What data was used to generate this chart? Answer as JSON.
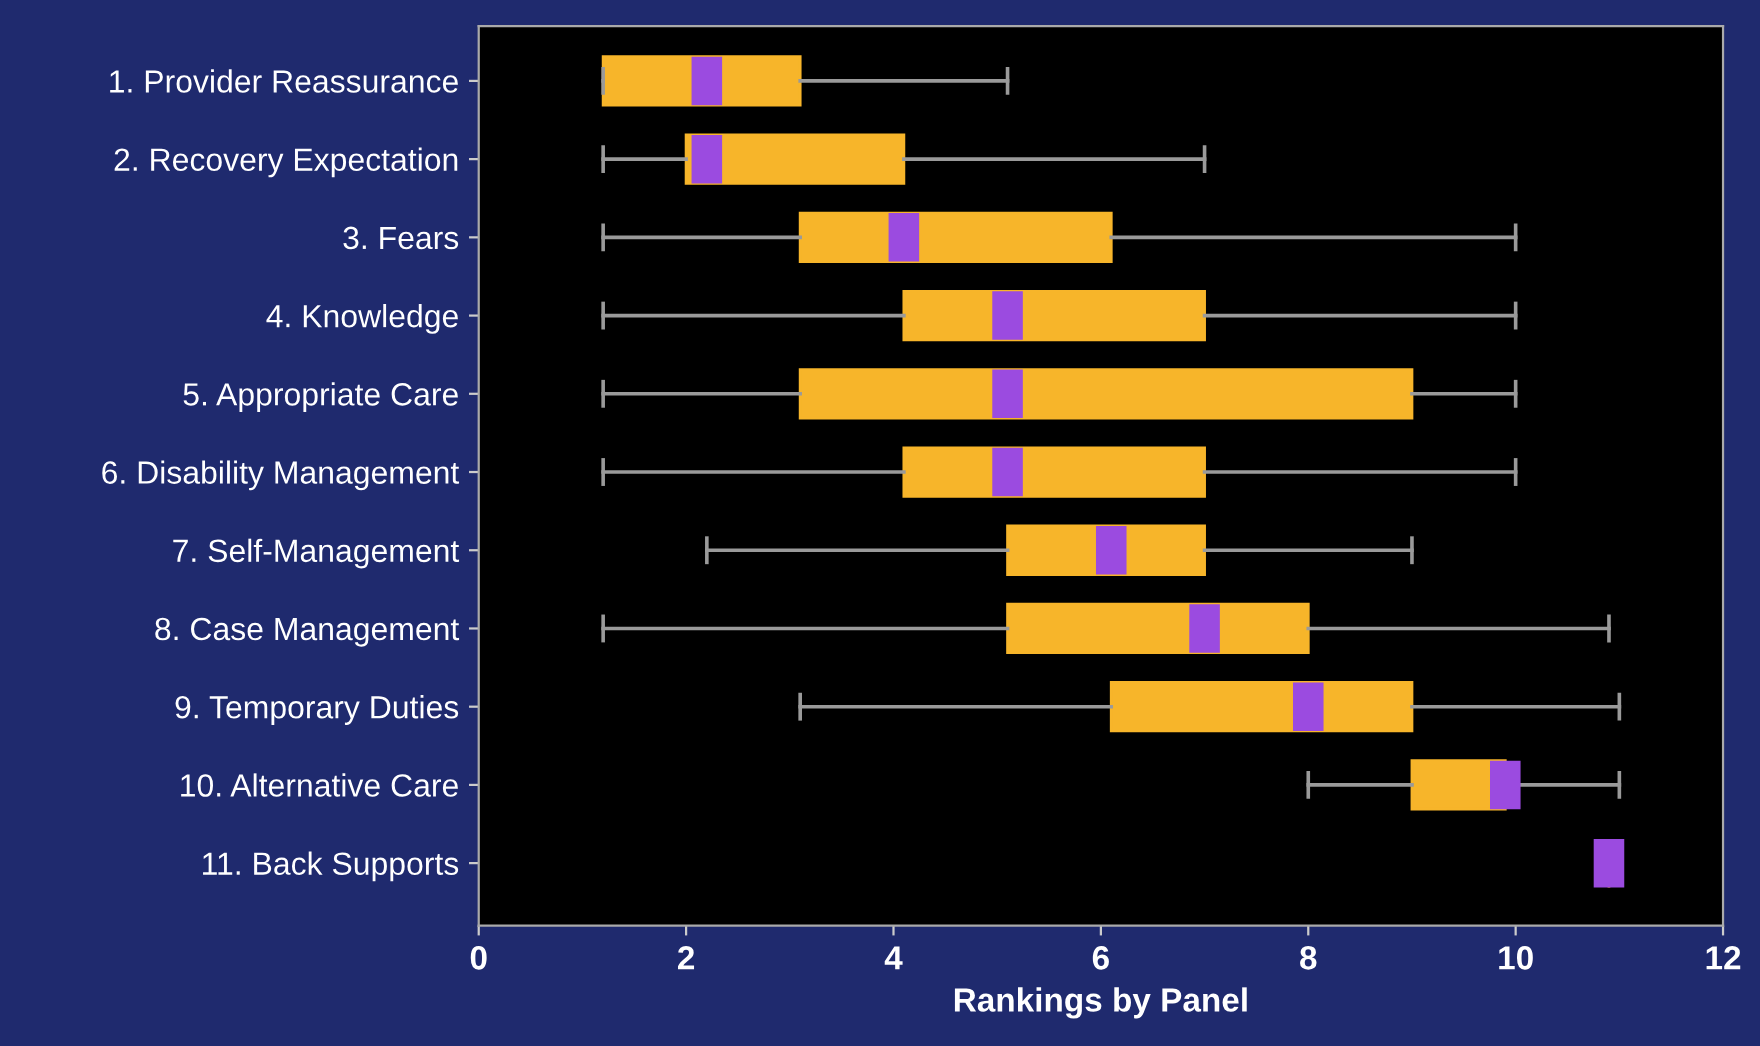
{
  "chart_data": {
    "type": "box",
    "orientation": "horizontal",
    "xlabel": "Rankings by Panel",
    "categories": [
      "1. Provider Reassurance",
      "2. Recovery Expectation",
      "3. Fears",
      "4. Knowledge",
      "5. Appropriate Care",
      "6. Disability Management",
      "7. Self-Management",
      "8. Case Management",
      "9. Temporary Duties",
      "10. Alternative Care",
      "11. Back Supports"
    ],
    "series": [
      {
        "color": "#f7b52a",
        "boxes": [
          {
            "low": 1.2,
            "q1": 1.2,
            "median": 2.2,
            "q3": 3.1,
            "high": 5.1
          },
          {
            "low": 1.2,
            "q1": 2.0,
            "median": 2.2,
            "q3": 4.1,
            "high": 7.0
          },
          {
            "low": 1.2,
            "q1": 3.1,
            "median": 4.1,
            "q3": 6.1,
            "high": 10.0
          },
          {
            "low": 1.2,
            "q1": 4.1,
            "median": 5.1,
            "q3": 7.0,
            "high": 10.0
          },
          {
            "low": 1.2,
            "q1": 3.1,
            "median": 5.1,
            "q3": 9.0,
            "high": 10.0
          },
          {
            "low": 1.2,
            "q1": 4.1,
            "median": 5.1,
            "q3": 7.0,
            "high": 10.0
          },
          {
            "low": 2.2,
            "q1": 5.1,
            "median": 6.1,
            "q3": 7.0,
            "high": 9.0
          },
          {
            "low": 1.2,
            "q1": 5.1,
            "median": 7.0,
            "q3": 8.0,
            "high": 10.9
          },
          {
            "low": 3.1,
            "q1": 6.1,
            "median": 8.0,
            "q3": 9.0,
            "high": 11.0
          },
          {
            "low": 8.0,
            "q1": 9.0,
            "median": 9.9,
            "q3": 9.9,
            "high": 11.0
          },
          {
            "low": 10.9,
            "q1": 10.9,
            "median": 10.9,
            "q3": 10.9,
            "high": 10.9
          }
        ]
      }
    ],
    "xlim": [
      0,
      12
    ],
    "xticks": [
      0,
      2,
      4,
      6,
      8,
      10,
      12
    ],
    "grid": false
  }
}
